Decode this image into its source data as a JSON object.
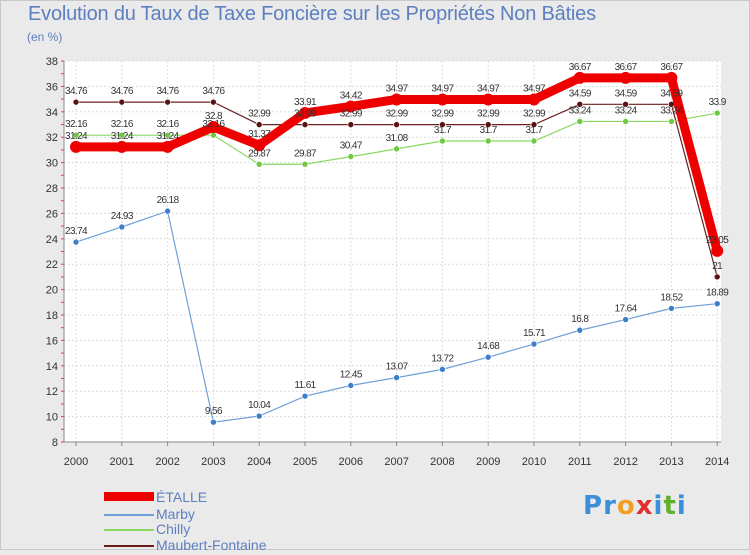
{
  "title": "Evolution du Taux de Taxe Foncière sur les Propriétés Non Bâties",
  "unit_label": "(en %)",
  "logo": {
    "text": "Proxiti",
    "letters": [
      "P",
      "r",
      "o",
      "x",
      "i",
      "t",
      "i"
    ],
    "colors": [
      "#3a8fd8",
      "#3a8fd8",
      "#f0a020",
      "#e03030",
      "#3a8fd8",
      "#60b030",
      "#3a8fd8"
    ]
  },
  "chart_data": {
    "type": "line",
    "title": "Evolution du Taux de Taxe Foncière sur les Propriétés Non Bâties",
    "ylabel": "(en %)",
    "xlabel": "",
    "x": [
      "2000",
      "2001",
      "2002",
      "2003",
      "2004",
      "2005",
      "2006",
      "2007",
      "2008",
      "2009",
      "2010",
      "2011",
      "2012",
      "2013",
      "2014"
    ],
    "ylim": [
      8,
      38
    ],
    "yticks": [
      8,
      10,
      12,
      14,
      16,
      18,
      20,
      22,
      24,
      26,
      28,
      30,
      32,
      34,
      36,
      38
    ],
    "grid": true,
    "legend_position": "bottom-left",
    "series": [
      {
        "name": "Maubert-Fontaine",
        "color": "#6b1e1e",
        "marker": "#5a1212",
        "values": [
          34.76,
          34.76,
          34.76,
          34.76,
          32.99,
          32.99,
          32.99,
          32.99,
          32.99,
          32.99,
          32.99,
          34.59,
          34.59,
          34.59,
          21
        ],
        "labels": [
          "34.76",
          "34.76",
          "34.76",
          "34.76",
          "32.99",
          "32.99",
          "32.99",
          "32.99",
          "32.99",
          "32.99",
          "32.99",
          "34.59",
          "34.59",
          "34.59",
          "21"
        ]
      },
      {
        "name": "Chilly",
        "color": "#88d860",
        "marker": "#70c840",
        "values": [
          32.16,
          32.16,
          32.16,
          32.16,
          29.87,
          29.87,
          30.47,
          31.08,
          31.7,
          31.7,
          31.7,
          33.24,
          33.24,
          33.24,
          33.9
        ],
        "labels": [
          "32.16",
          "32.16",
          "32.16",
          "32.16",
          "29.87",
          "29.87",
          "30.47",
          "31.08",
          "31.7",
          "31.7",
          "31.7",
          "33.24",
          "33.24",
          "33.24",
          "33.9"
        ]
      },
      {
        "name": "Marby",
        "color": "#6fa0d8",
        "marker": "#3d7ec8",
        "values": [
          23.74,
          24.93,
          26.18,
          9.56,
          10.04,
          11.61,
          12.45,
          13.07,
          13.72,
          14.68,
          15.71,
          16.8,
          17.64,
          18.52,
          18.89
        ],
        "labels": [
          "23.74",
          "24.93",
          "26.18",
          "9.56",
          "10.04",
          "11.61",
          "12.45",
          "13.07",
          "13.72",
          "14.68",
          "15.71",
          "16.8",
          "17.64",
          "18.52",
          "18.89"
        ]
      },
      {
        "name": "ÉTALLE",
        "color": "#ee0000",
        "marker": "#ee0000",
        "values": [
          31.24,
          31.24,
          31.24,
          32.8,
          31.37,
          33.91,
          34.42,
          34.97,
          34.97,
          34.97,
          34.97,
          36.67,
          36.67,
          36.67,
          23.05
        ],
        "labels": [
          "31.24",
          "31.24",
          "31.24",
          "32.8",
          "31.37",
          "33.91",
          "34.42",
          "34.97",
          "34.97",
          "34.97",
          "34.97",
          "36.67",
          "36.67",
          "36.67",
          "23.05"
        ]
      }
    ],
    "legend_order": [
      "ÉTALLE",
      "Marby",
      "Chilly",
      "Maubert-Fontaine"
    ]
  }
}
